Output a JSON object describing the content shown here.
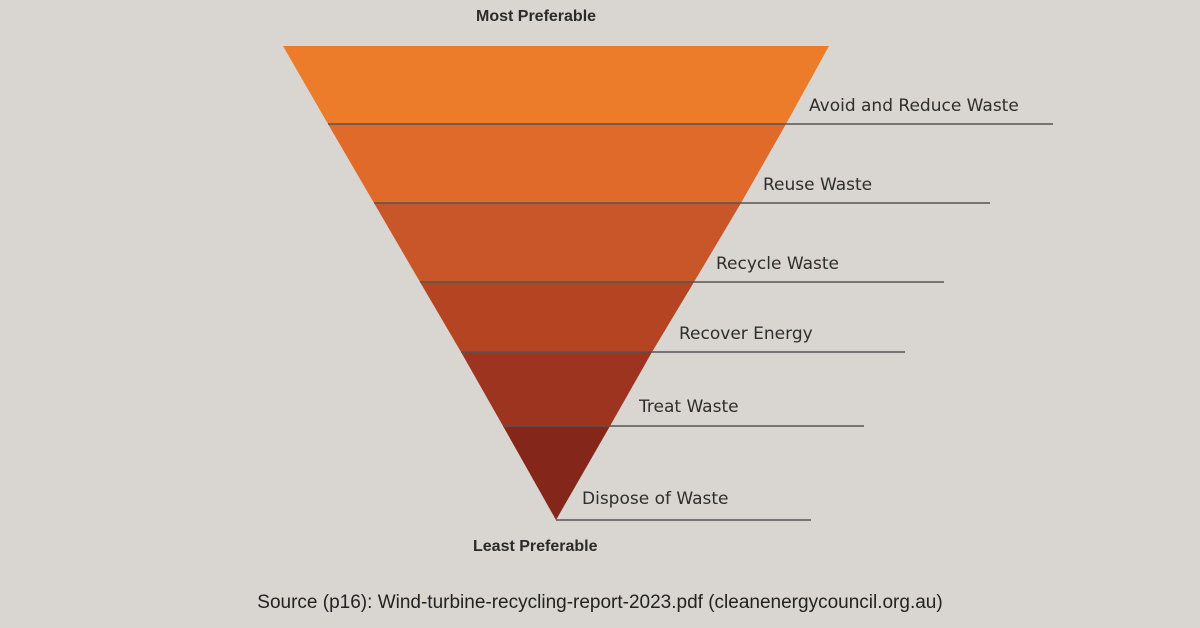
{
  "top_label": "Most Preferable",
  "bottom_label": "Least Preferable",
  "tiers": [
    {
      "label": "Avoid and Reduce Waste",
      "color": "#ec7c2a"
    },
    {
      "label": "Reuse Waste",
      "color": "#df6a29"
    },
    {
      "label": "Recycle Waste",
      "color": "#c95628"
    },
    {
      "label": "Recover Energy",
      "color": "#b44422"
    },
    {
      "label": "Treat Waste",
      "color": "#9d3420"
    },
    {
      "label": "Dispose of Waste",
      "color": "#84261a"
    }
  ],
  "source": "Source (p16): Wind-turbine-recycling-report-2023.pdf (cleanenergycouncil.org.au)"
}
